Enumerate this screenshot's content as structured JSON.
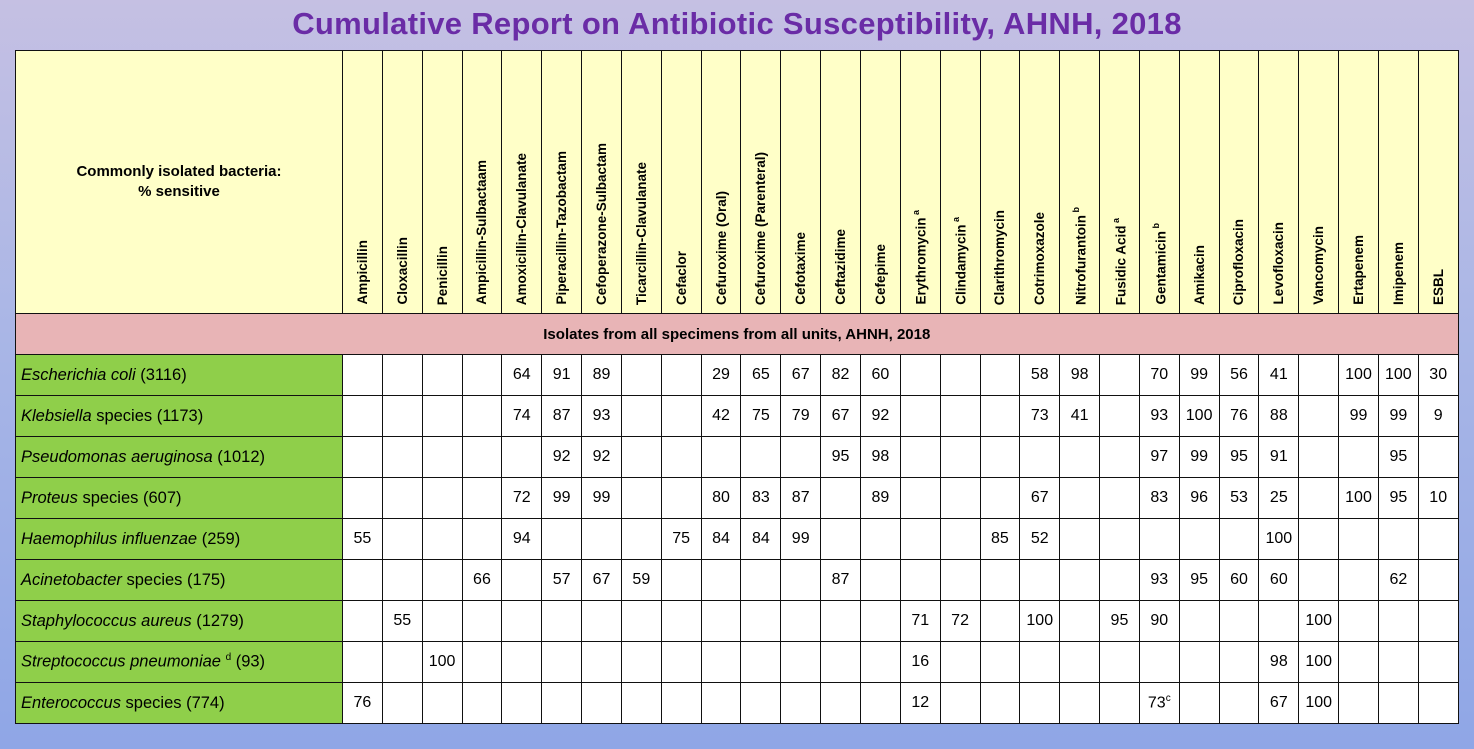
{
  "title": "Cumulative Report on Antibiotic Susceptibility, AHNH, 2018",
  "header_label_line1": "Commonly isolated bacteria:",
  "header_label_line2": "% sensitive",
  "section_label": "Isolates from all specimens from all units, AHNH, 2018",
  "antibiotics": [
    {
      "name": "Ampicillin",
      "sup": ""
    },
    {
      "name": "Cloxacillin",
      "sup": ""
    },
    {
      "name": "Penicillin",
      "sup": ""
    },
    {
      "name": "Ampicillin-Sulbactaam",
      "sup": ""
    },
    {
      "name": "Amoxicillin-Clavulanate",
      "sup": ""
    },
    {
      "name": "Piperacillin-Tazobactam",
      "sup": ""
    },
    {
      "name": "Cefoperazone-Sulbactam",
      "sup": ""
    },
    {
      "name": "Ticarcillin-Clavulanate",
      "sup": ""
    },
    {
      "name": "Cefaclor",
      "sup": ""
    },
    {
      "name": "Cefuroxime (Oral)",
      "sup": ""
    },
    {
      "name": "Cefuroxime (Parenteral)",
      "sup": ""
    },
    {
      "name": "Cefotaxime",
      "sup": ""
    },
    {
      "name": "Ceftazidime",
      "sup": ""
    },
    {
      "name": "Cefepime",
      "sup": ""
    },
    {
      "name": "Erythromycin",
      "sup": "a"
    },
    {
      "name": "Clindamycin",
      "sup": "a"
    },
    {
      "name": "Clarithromycin",
      "sup": ""
    },
    {
      "name": "Cotrimoxazole",
      "sup": ""
    },
    {
      "name": "Nitrofurantoin",
      "sup": "b"
    },
    {
      "name": "Fusidic Acid",
      "sup": "a"
    },
    {
      "name": "Gentamicin",
      "sup": "b"
    },
    {
      "name": "Amikacin",
      "sup": ""
    },
    {
      "name": "Ciprofloxacin",
      "sup": ""
    },
    {
      "name": "Levofloxacin",
      "sup": ""
    },
    {
      "name": "Vancomycin",
      "sup": ""
    },
    {
      "name": "Ertapenem",
      "sup": ""
    },
    {
      "name": "Imipenem",
      "sup": ""
    },
    {
      "name": "ESBL",
      "sup": ""
    }
  ],
  "rows": [
    {
      "name_italic": "Escherichia coli",
      "name_rest": "",
      "sup": "",
      "count": " (3116)",
      "values": [
        "",
        "",
        "",
        "",
        "64",
        "91",
        "89",
        "",
        "",
        "29",
        "65",
        "67",
        "82",
        "60",
        "",
        "",
        "",
        "58",
        "98",
        "",
        "70",
        "99",
        "56",
        "41",
        "",
        "100",
        "100",
        "30"
      ]
    },
    {
      "name_italic": "Klebsiella",
      "name_rest": " species",
      "sup": "",
      "count": " (1173)",
      "values": [
        "",
        "",
        "",
        "",
        "74",
        "87",
        "93",
        "",
        "",
        "42",
        "75",
        "79",
        "67",
        "92",
        "",
        "",
        "",
        "73",
        "41",
        "",
        "93",
        "100",
        "76",
        "88",
        "",
        "99",
        "99",
        "9"
      ]
    },
    {
      "name_italic": "Pseudomonas aeruginosa",
      "name_rest": "",
      "sup": "",
      "count": " (1012)",
      "values": [
        "",
        "",
        "",
        "",
        "",
        "92",
        "92",
        "",
        "",
        "",
        "",
        "",
        "95",
        "98",
        "",
        "",
        "",
        "",
        "",
        "",
        "97",
        "99",
        "95",
        "91",
        "",
        "",
        "95",
        ""
      ]
    },
    {
      "name_italic": "Proteus",
      "name_rest": " species",
      "sup": "",
      "count": " (607)",
      "values": [
        "",
        "",
        "",
        "",
        "72",
        "99",
        "99",
        "",
        "",
        "80",
        "83",
        "87",
        "",
        "89",
        "",
        "",
        "",
        "67",
        "",
        "",
        "83",
        "96",
        "53",
        "25",
        "",
        "100",
        "95",
        "10"
      ]
    },
    {
      "name_italic": "Haemophilus influenzae",
      "name_rest": "",
      "sup": "",
      "count": " (259)",
      "values": [
        "55",
        "",
        "",
        "",
        "94",
        "",
        "",
        "",
        "75",
        "84",
        "84",
        "99",
        "",
        "",
        "",
        "",
        "85",
        "52",
        "",
        "",
        "",
        "",
        "",
        "100",
        "",
        "",
        "",
        ""
      ]
    },
    {
      "name_italic": "Acinetobacter",
      "name_rest": " species",
      "sup": "",
      "count": " (175)",
      "values": [
        "",
        "",
        "",
        "66",
        "",
        "57",
        "67",
        "59",
        "",
        "",
        "",
        "",
        "87",
        "",
        "",
        "",
        "",
        "",
        "",
        "",
        "93",
        "95",
        "60",
        "60",
        "",
        "",
        "62",
        ""
      ]
    },
    {
      "name_italic": "Staphylococcus aureus",
      "name_rest": "",
      "sup": "",
      "count": " (1279)",
      "values": [
        "",
        "55",
        "",
        "",
        "",
        "",
        "",
        "",
        "",
        "",
        "",
        "",
        "",
        "",
        "71",
        "72",
        "",
        "100",
        "",
        "95",
        "90",
        "",
        "",
        "",
        "100",
        "",
        "",
        ""
      ]
    },
    {
      "name_italic": "Streptococcus pneumoniae",
      "name_rest": " ",
      "sup": "d",
      "count": " (93)",
      "values": [
        "",
        "",
        "100",
        "",
        "",
        "",
        "",
        "",
        "",
        "",
        "",
        "",
        "",
        "",
        "16",
        "",
        "",
        "",
        "",
        "",
        "",
        "",
        "",
        "98",
        "100",
        "",
        "",
        ""
      ]
    },
    {
      "name_italic": "Enterococcus",
      "name_rest": " species",
      "sup": "",
      "count": " (774)",
      "values": [
        "76",
        "",
        "",
        "",
        "",
        "",
        "",
        "",
        "",
        "",
        "",
        "",
        "",
        "",
        "12",
        "",
        "",
        "",
        "",
        "",
        "73",
        "",
        "",
        "67",
        "100",
        "",
        "",
        ""
      ],
      "value_sups": {
        "20": "c"
      }
    }
  ]
}
